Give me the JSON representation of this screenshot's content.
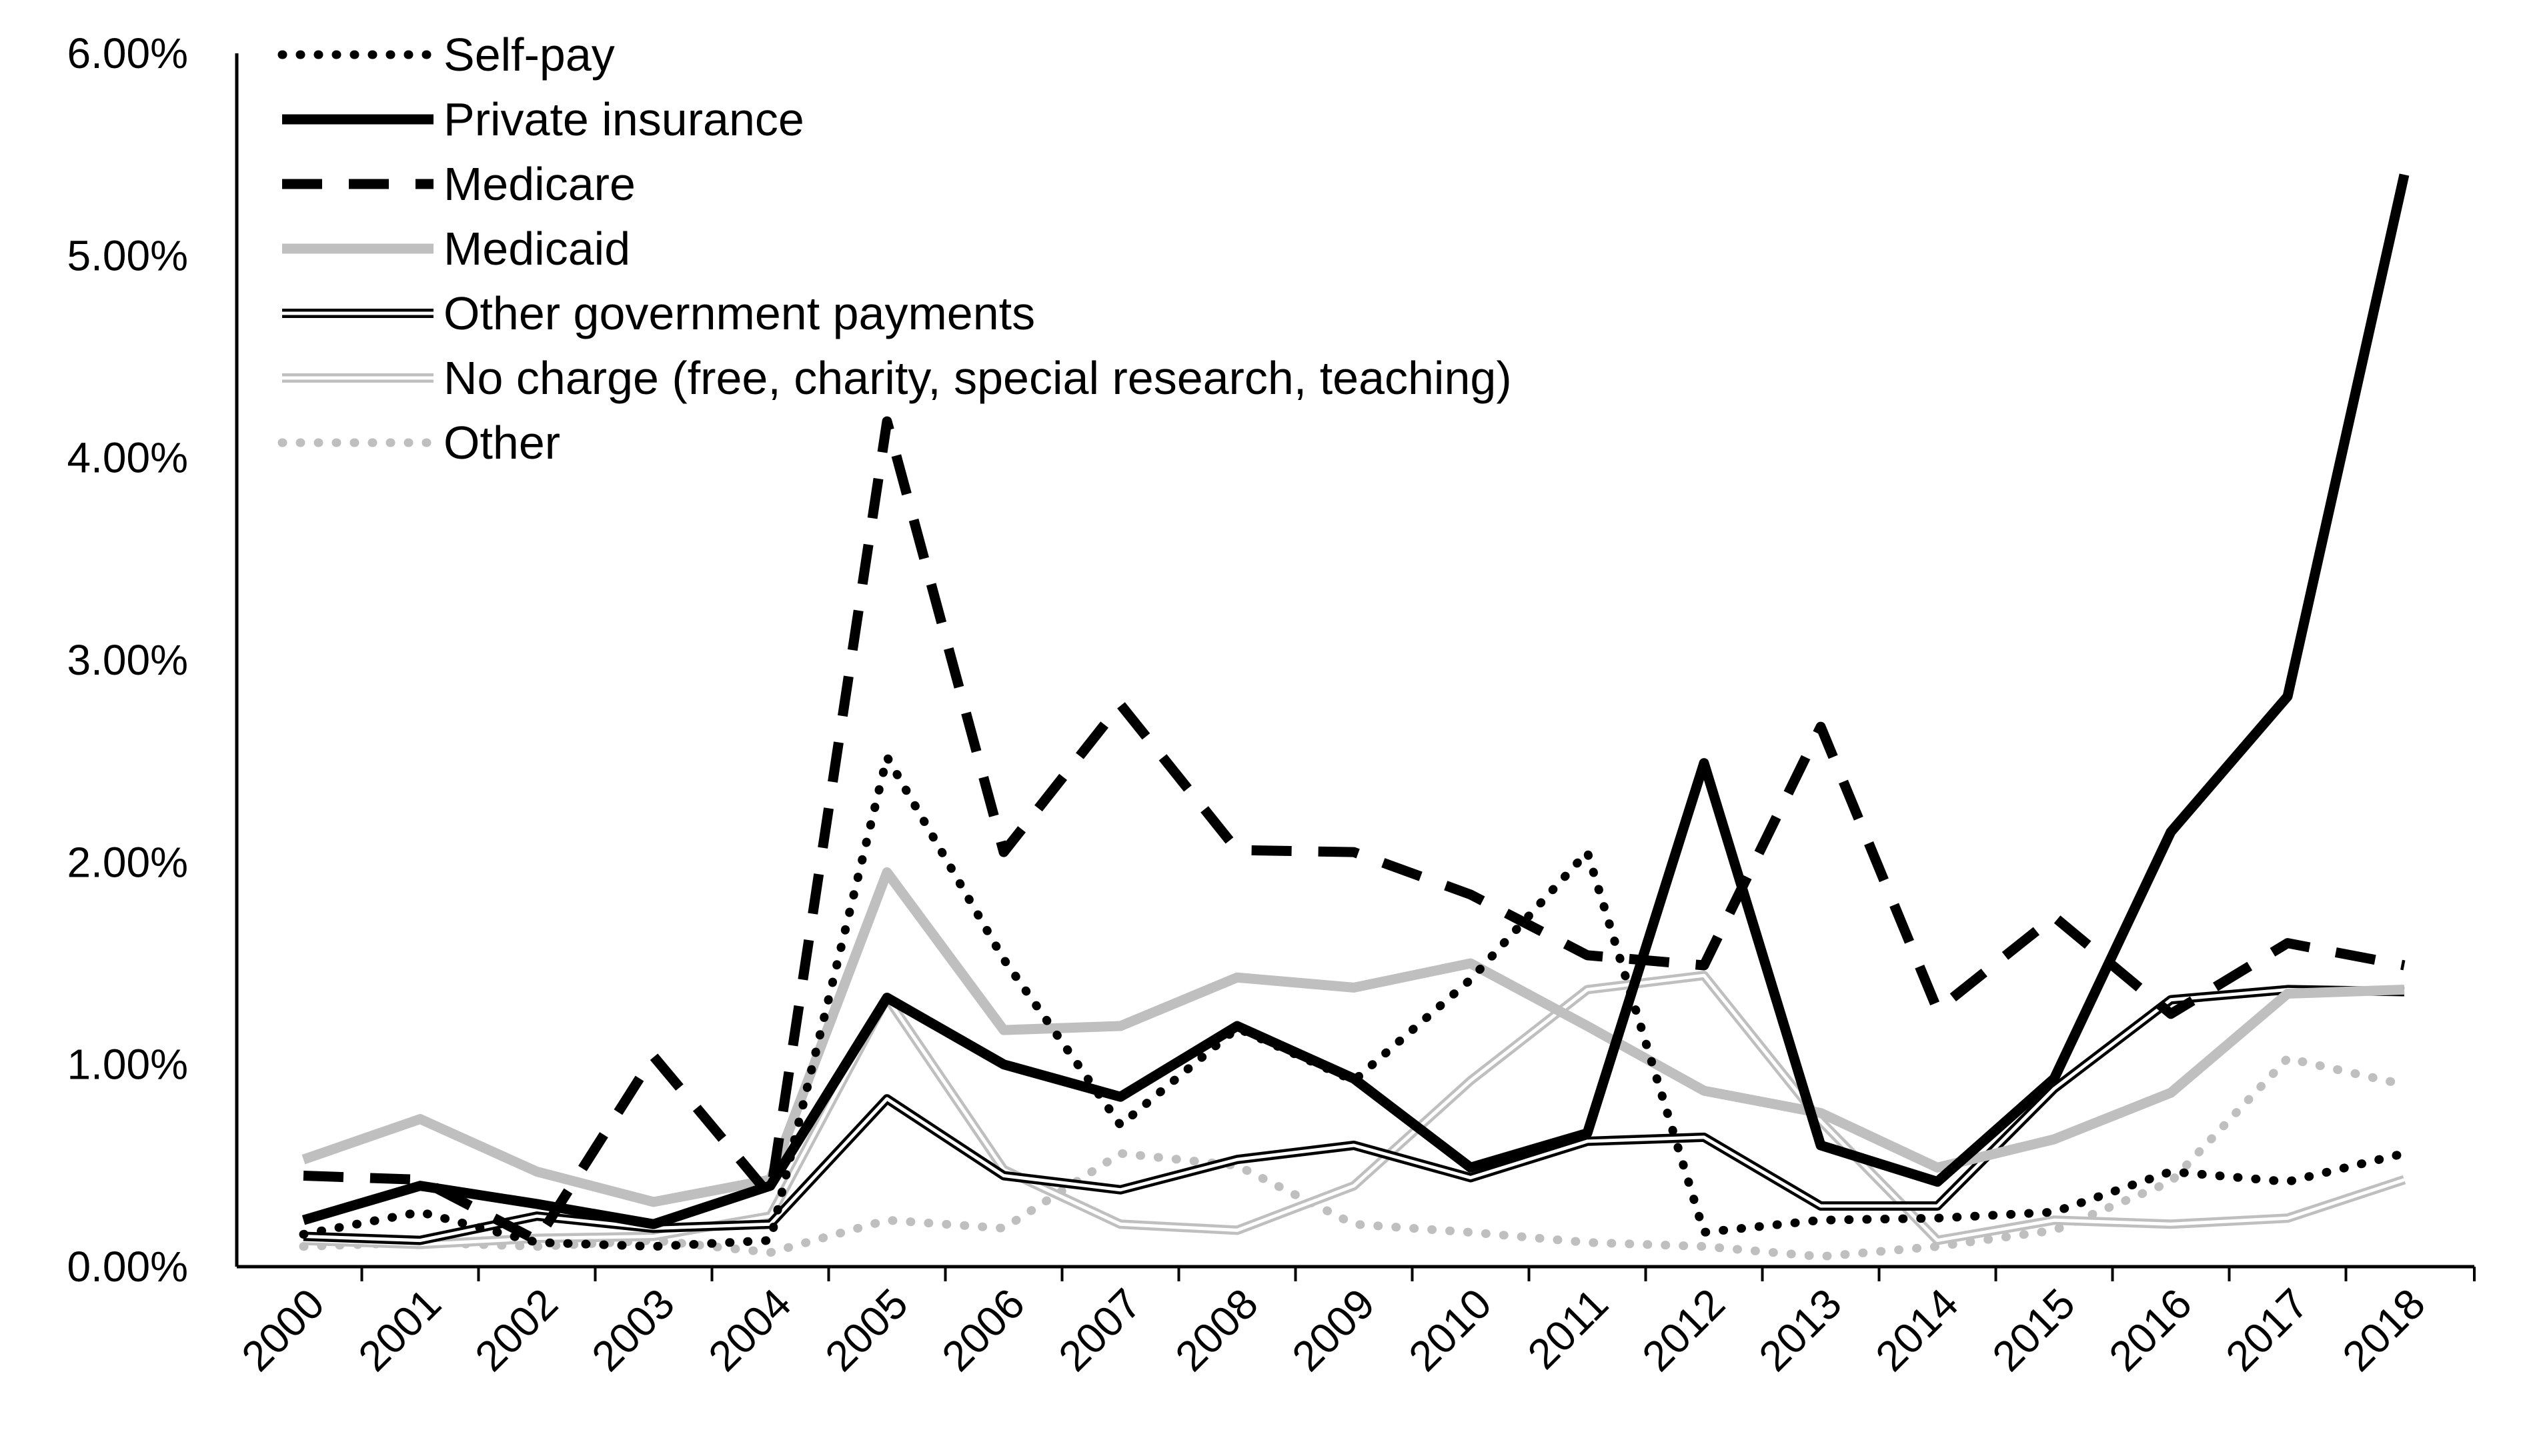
{
  "chart_data": {
    "type": "line",
    "title": "",
    "xlabel": "",
    "ylabel": "",
    "categories": [
      "2000",
      "2001",
      "2002",
      "2003",
      "2004",
      "2005",
      "2006",
      "2007",
      "2008",
      "2009",
      "2010",
      "2011",
      "2012",
      "2013",
      "2014",
      "2015",
      "2016",
      "2017",
      "2018"
    ],
    "ylim": [
      0,
      6
    ],
    "yticks": [
      "0.00%",
      "1.00%",
      "2.00%",
      "3.00%",
      "4.00%",
      "5.00%",
      "6.00%"
    ],
    "grid": false,
    "legend_position": "top-left",
    "series": [
      {
        "name": "Self-pay",
        "style": "dotted-black",
        "values": [
          0.16,
          0.27,
          0.12,
          0.1,
          0.13,
          2.52,
          1.52,
          0.7,
          1.18,
          0.92,
          1.42,
          2.05,
          0.17,
          0.23,
          0.24,
          0.27,
          0.47,
          0.42,
          0.56
        ]
      },
      {
        "name": "Private insurance",
        "style": "solid-black-thick",
        "values": [
          0.23,
          0.4,
          0.31,
          0.21,
          0.4,
          1.33,
          1.0,
          0.84,
          1.19,
          0.93,
          0.49,
          0.66,
          2.49,
          0.6,
          0.42,
          0.93,
          2.15,
          2.82,
          5.4
        ]
      },
      {
        "name": "Medicare",
        "style": "dashed-black",
        "values": [
          0.45,
          0.43,
          0.13,
          1.04,
          0.35,
          4.18,
          2.05,
          2.78,
          2.06,
          2.05,
          1.84,
          1.54,
          1.49,
          2.67,
          1.27,
          1.73,
          1.25,
          1.6,
          1.49
        ]
      },
      {
        "name": "Medicaid",
        "style": "solid-gray-thick",
        "values": [
          0.53,
          0.73,
          0.47,
          0.32,
          0.43,
          1.95,
          1.17,
          1.19,
          1.43,
          1.38,
          1.5,
          1.19,
          0.87,
          0.76,
          0.49,
          0.63,
          0.86,
          1.35,
          1.37
        ]
      },
      {
        "name": "Other government payments",
        "style": "double-black",
        "values": [
          0.15,
          0.13,
          0.25,
          0.19,
          0.21,
          0.83,
          0.45,
          0.38,
          0.53,
          0.6,
          0.44,
          0.62,
          0.64,
          0.3,
          0.3,
          0.88,
          1.32,
          1.37,
          1.36
        ]
      },
      {
        "name": "No charge (free, charity, special research, teaching)",
        "style": "double-gray",
        "values": [
          0.13,
          0.11,
          0.14,
          0.15,
          0.25,
          1.33,
          0.48,
          0.21,
          0.18,
          0.4,
          0.92,
          1.37,
          1.44,
          0.72,
          0.13,
          0.23,
          0.21,
          0.24,
          0.43
        ]
      },
      {
        "name": "Other",
        "style": "dotted-gray",
        "values": [
          0.1,
          0.12,
          0.1,
          0.13,
          0.07,
          0.23,
          0.19,
          0.56,
          0.5,
          0.21,
          0.17,
          0.12,
          0.1,
          0.05,
          0.1,
          0.18,
          0.42,
          1.03,
          0.9
        ]
      }
    ]
  }
}
